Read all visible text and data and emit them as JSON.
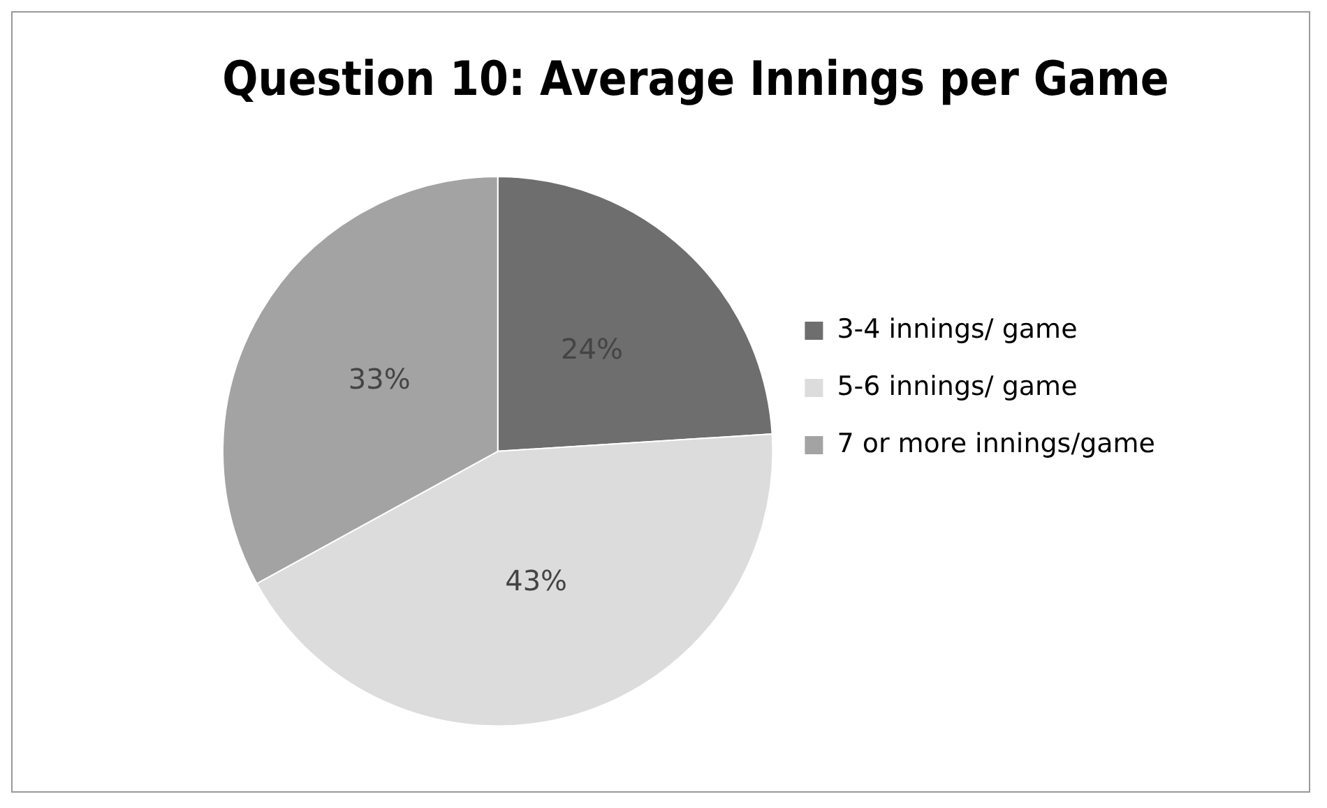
{
  "chart_data": {
    "type": "pie",
    "title": "Question 10: Average Innings per Game",
    "categories": [
      "3-4 innings/ game",
      "5-6 innings/ game",
      "7 or more innings/game"
    ],
    "values": [
      24,
      43,
      33
    ],
    "colors": [
      "#6e6e6e",
      "#dcdcdc",
      "#a3a3a3"
    ],
    "value_labels": [
      "24%",
      "43%",
      "33%"
    ],
    "legend": "right"
  }
}
